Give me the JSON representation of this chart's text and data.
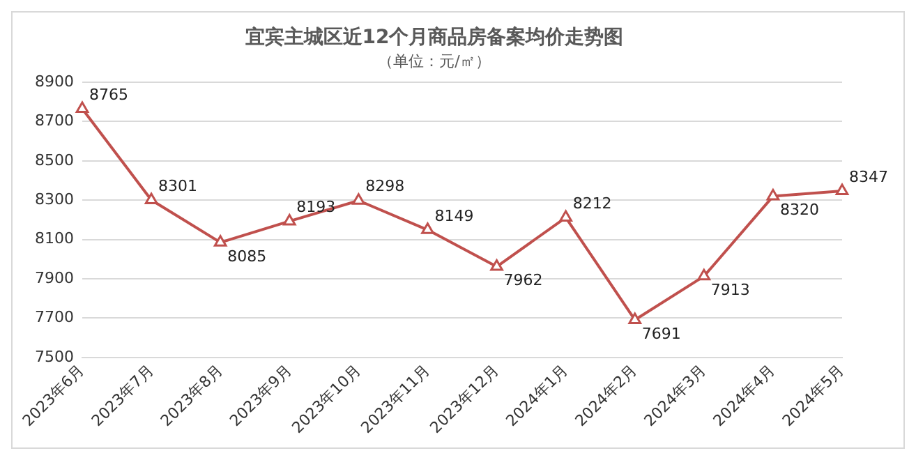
{
  "chart_data": {
    "type": "line",
    "title": "宜宾主城区近12个月商品房备案均价走势图",
    "subtitle": "（单位：元/㎡）",
    "categories": [
      "2023年6月",
      "2023年7月",
      "2023年8月",
      "2023年9月",
      "2023年10月",
      "2023年11月",
      "2023年12月",
      "2024年1月",
      "2024年2月",
      "2024年3月",
      "2024年4月",
      "2024年5月"
    ],
    "series": [
      {
        "color": "#c0504d",
        "values": [
          8765,
          8301,
          8085,
          8193,
          8298,
          8149,
          7962,
          8212,
          7691,
          7913,
          8320,
          8347
        ]
      }
    ],
    "ylim": [
      7500,
      8900
    ],
    "yticks": [
      7500,
      7700,
      7900,
      8100,
      8300,
      8500,
      8700,
      8900
    ],
    "grid": "y",
    "marker": "triangle",
    "line_style": "solid",
    "data_labels": true,
    "legend": false
  }
}
